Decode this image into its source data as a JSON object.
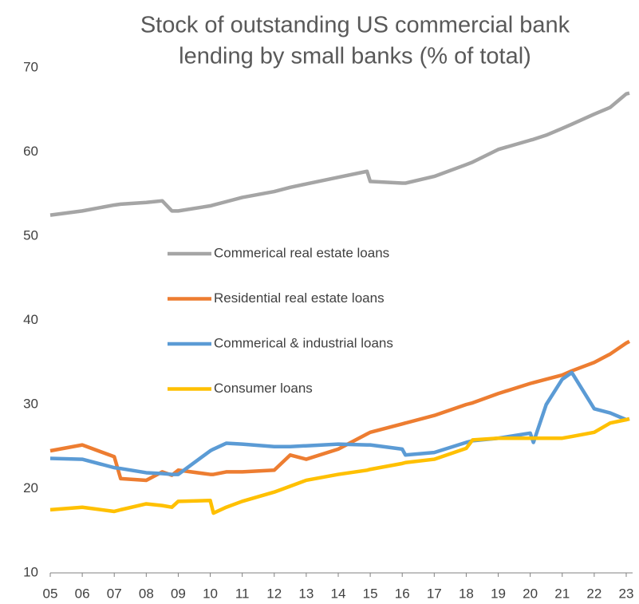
{
  "chart_data": {
    "type": "line",
    "title": [
      "Stock of outstanding US commercial bank",
      "lending by small banks (% of total)"
    ],
    "x": [
      5,
      6,
      7,
      7.2,
      8,
      8.5,
      8.8,
      9,
      10,
      10.1,
      10.5,
      11,
      12,
      12.5,
      13,
      14,
      14.9,
      15,
      16,
      16.1,
      17,
      18,
      18.2,
      19,
      20,
      20.1,
      20.5,
      21,
      21.3,
      22,
      22.5,
      23,
      23.1
    ],
    "series": [
      {
        "name": "Commerical real estate loans",
        "color": "#a5a5a5",
        "values": [
          52.5,
          53,
          53.7,
          53.8,
          54,
          54.2,
          53,
          53,
          53.6,
          53.7,
          54.1,
          54.6,
          55.3,
          55.8,
          56.2,
          57,
          57.7,
          56.5,
          56.3,
          56.3,
          57.1,
          58.5,
          58.8,
          60.3,
          61.4,
          61.5,
          62,
          62.8,
          63.3,
          64.5,
          65.3,
          66.9,
          67
        ]
      },
      {
        "name": "Residential real estate loans",
        "color": "#ed7d31",
        "values": [
          24.5,
          25.2,
          23.8,
          21.2,
          21,
          22,
          21.6,
          22.2,
          21.7,
          21.7,
          22,
          22,
          22.2,
          24,
          23.5,
          24.7,
          26.5,
          26.7,
          27.7,
          27.8,
          28.7,
          30,
          30.2,
          31.3,
          32.5,
          32.6,
          33,
          33.5,
          34,
          35,
          36,
          37.3,
          37.5
        ]
      },
      {
        "name": "Commerical & industrial loans",
        "color": "#5b9bd5",
        "values": [
          23.6,
          23.5,
          22.5,
          22.4,
          21.9,
          21.8,
          21.7,
          21.7,
          24.5,
          24.7,
          25.4,
          25.3,
          25,
          25,
          25.1,
          25.3,
          25.2,
          25.2,
          24.7,
          24,
          24.3,
          25.5,
          25.7,
          26,
          26.6,
          25.5,
          30,
          33,
          33.8,
          29.5,
          29,
          28.2,
          28.3
        ]
      },
      {
        "name": "Consumer loans",
        "color": "#ffc000",
        "values": [
          17.5,
          17.8,
          17.3,
          17.5,
          18.2,
          18,
          17.8,
          18.5,
          18.6,
          17.1,
          17.8,
          18.5,
          19.6,
          20.3,
          21,
          21.7,
          22.2,
          22.3,
          23,
          23.1,
          23.5,
          24.8,
          25.8,
          26,
          26,
          26,
          26,
          26,
          26.2,
          26.7,
          27.8,
          28.2,
          28.3
        ]
      }
    ],
    "xlim": [
      5,
      23.2
    ],
    "xticks": [
      {
        "value": 5,
        "label": "05"
      },
      {
        "value": 6,
        "label": "06"
      },
      {
        "value": 7,
        "label": "07"
      },
      {
        "value": 8,
        "label": "08"
      },
      {
        "value": 9,
        "label": "09"
      },
      10,
      11,
      12,
      13,
      14,
      15,
      16,
      17,
      18,
      19,
      20,
      21,
      22,
      23
    ],
    "ylim": [
      10,
      70
    ],
    "yticks": [
      10,
      20,
      30,
      40,
      50,
      60,
      70
    ],
    "grid": false
  }
}
